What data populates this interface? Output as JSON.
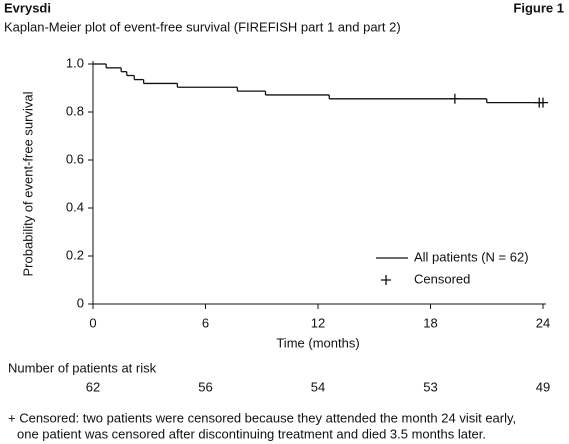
{
  "chart_data": {
    "type": "line",
    "step": "post",
    "brand": "Evrysdi",
    "figure_label": "Figure 1",
    "title": "Kaplan-Meier plot of event-free survival (FIREFISH part 1 and part 2)",
    "x_label": "Time (months)",
    "y_label": "Probability of event-free survival",
    "xlim": [
      0,
      24
    ],
    "xticks": [
      0,
      6,
      12,
      18,
      24
    ],
    "ylim": [
      0,
      1
    ],
    "yticks": [
      0,
      0.2,
      0.4,
      0.6,
      0.8,
      {
        "value": 1,
        "label": "1.0"
      }
    ],
    "series": [
      {
        "name": "All patients (N = 62)",
        "color": "#111111",
        "marker": "none",
        "x": [
          0,
          0.7,
          1.5,
          1.8,
          2.2,
          2.7,
          4.5,
          7.7,
          9.2,
          12.6,
          21,
          24
        ],
        "values": [
          1,
          0.984,
          0.968,
          0.952,
          0.935,
          0.919,
          0.903,
          0.887,
          0.871,
          0.855,
          0.839,
          0.839
        ]
      },
      {
        "name": "Censored",
        "color": "#111111",
        "marker": "+",
        "x": [
          19.3,
          23.8,
          24
        ],
        "values": [
          0.855,
          0.839,
          0.839
        ]
      }
    ],
    "risk_table": {
      "title": "Number of patients at risk",
      "x": [
        0,
        6,
        12,
        18,
        24
      ],
      "values": [
        62,
        56,
        54,
        53,
        49
      ]
    },
    "footnote": [
      "+ Censored: two patients were censored because they attended the month 24 visit early,",
      "one patient was censored after discontinuing treatment and died 3.5 months later."
    ]
  }
}
